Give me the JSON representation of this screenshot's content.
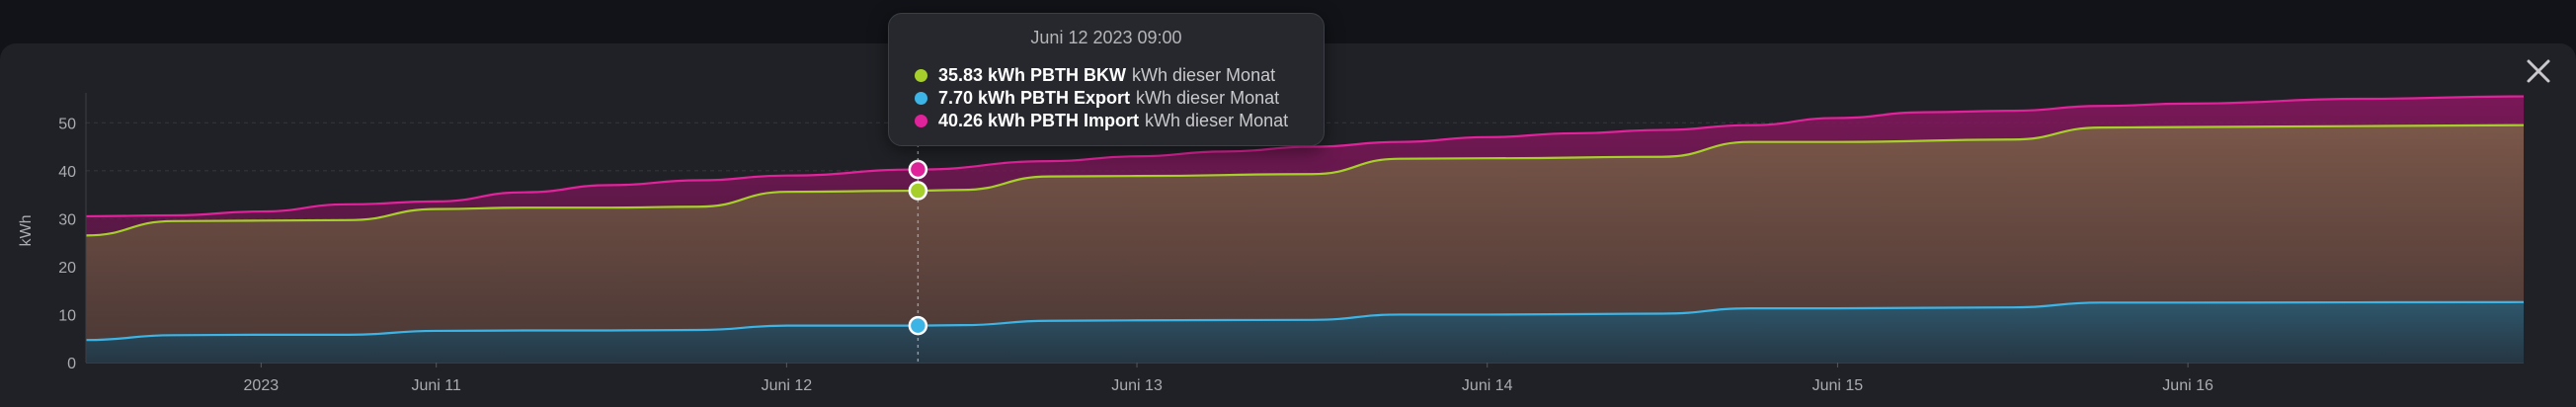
{
  "colors": {
    "page_bg": "#111318",
    "panel_bg": "#1f2126",
    "import": "#e0239a",
    "bkw": "#a7cf2c",
    "export": "#3db4e6"
  },
  "close_icon": "close-icon",
  "tooltip": {
    "title": "Juni 12 2023 09:00",
    "rows": [
      {
        "value": "35.83 kWh PBTH BKW",
        "unit": "kWh dieser Monat",
        "color": "#a7cf2c"
      },
      {
        "value": "7.70 kWh PBTH Export",
        "unit": "kWh dieser Monat",
        "color": "#3db4e6"
      },
      {
        "value": "40.26 kWh PBTH Import",
        "unit": "kWh dieser Monat",
        "color": "#e0239a"
      }
    ]
  },
  "chart_data": {
    "type": "area",
    "ylabel": "kWh",
    "ylim": [
      0,
      55
    ],
    "yticks": [
      0,
      10,
      20,
      30,
      40,
      50
    ],
    "x_range_hours": [
      "2023-06-10 00:00",
      "2023-06-16 23:00"
    ],
    "xtick_labels": [
      "2023",
      "Juni 11",
      "Juni 12",
      "Juni 13",
      "Juni 14",
      "Juni 15",
      "Juni 16"
    ],
    "xtick_dates": [
      "2023-06-10 12:00",
      "2023-06-11 00:00",
      "2023-06-12 00:00",
      "2023-06-13 00:00",
      "2023-06-14 00:00",
      "2023-06-15 00:00",
      "2023-06-16 00:00"
    ],
    "grid": true,
    "hover_x": "2023-06-12 09:00",
    "series": [
      {
        "name": "PBTH Import",
        "color": "#e0239a",
        "points": [
          [
            "2023-06-10 00:00",
            30.5
          ],
          [
            "2023-06-10 06:00",
            30.7
          ],
          [
            "2023-06-10 12:00",
            31.5
          ],
          [
            "2023-06-10 18:00",
            33.0
          ],
          [
            "2023-06-11 00:00",
            33.6
          ],
          [
            "2023-06-11 06:00",
            35.5
          ],
          [
            "2023-06-11 12:00",
            37.0
          ],
          [
            "2023-06-11 18:00",
            38.0
          ],
          [
            "2023-06-12 00:00",
            39.0
          ],
          [
            "2023-06-12 09:00",
            40.26
          ],
          [
            "2023-06-12 18:00",
            42.0
          ],
          [
            "2023-06-13 00:00",
            43.0
          ],
          [
            "2023-06-13 06:00",
            44.0
          ],
          [
            "2023-06-13 12:00",
            45.0
          ],
          [
            "2023-06-13 18:00",
            46.0
          ],
          [
            "2023-06-14 00:00",
            47.0
          ],
          [
            "2023-06-14 06:00",
            47.8
          ],
          [
            "2023-06-14 12:00",
            48.5
          ],
          [
            "2023-06-14 18:00",
            49.5
          ],
          [
            "2023-06-15 00:00",
            51.0
          ],
          [
            "2023-06-15 06:00",
            52.2
          ],
          [
            "2023-06-15 12:00",
            52.5
          ],
          [
            "2023-06-15 18:00",
            53.5
          ],
          [
            "2023-06-16 00:00",
            54.0
          ],
          [
            "2023-06-16 12:00",
            55.0
          ],
          [
            "2023-06-16 23:00",
            55.5
          ]
        ]
      },
      {
        "name": "PBTH BKW",
        "color": "#a7cf2c",
        "points": [
          [
            "2023-06-10 00:00",
            26.5
          ],
          [
            "2023-06-10 06:00",
            29.5
          ],
          [
            "2023-06-10 12:00",
            29.6
          ],
          [
            "2023-06-10 18:00",
            29.7
          ],
          [
            "2023-06-11 00:00",
            32.0
          ],
          [
            "2023-06-11 06:00",
            32.3
          ],
          [
            "2023-06-11 12:00",
            32.3
          ],
          [
            "2023-06-11 18:00",
            32.5
          ],
          [
            "2023-06-12 00:00",
            35.6
          ],
          [
            "2023-06-12 09:00",
            35.83
          ],
          [
            "2023-06-12 12:00",
            36.0
          ],
          [
            "2023-06-12 18:00",
            38.8
          ],
          [
            "2023-06-13 00:00",
            38.9
          ],
          [
            "2023-06-13 12:00",
            39.3
          ],
          [
            "2023-06-13 18:00",
            42.5
          ],
          [
            "2023-06-14 00:00",
            42.6
          ],
          [
            "2023-06-14 12:00",
            42.9
          ],
          [
            "2023-06-14 18:00",
            46.0
          ],
          [
            "2023-06-15 00:00",
            46.0
          ],
          [
            "2023-06-15 12:00",
            46.5
          ],
          [
            "2023-06-15 18:00",
            49.0
          ],
          [
            "2023-06-16 00:00",
            49.1
          ],
          [
            "2023-06-16 23:00",
            49.5
          ]
        ]
      },
      {
        "name": "PBTH Export",
        "color": "#3db4e6",
        "points": [
          [
            "2023-06-10 00:00",
            4.7
          ],
          [
            "2023-06-10 06:00",
            5.7
          ],
          [
            "2023-06-10 12:00",
            5.8
          ],
          [
            "2023-06-10 18:00",
            5.8
          ],
          [
            "2023-06-11 00:00",
            6.6
          ],
          [
            "2023-06-11 06:00",
            6.7
          ],
          [
            "2023-06-11 12:00",
            6.7
          ],
          [
            "2023-06-11 18:00",
            6.8
          ],
          [
            "2023-06-12 00:00",
            7.7
          ],
          [
            "2023-06-12 09:00",
            7.7
          ],
          [
            "2023-06-12 12:00",
            7.8
          ],
          [
            "2023-06-12 18:00",
            8.7
          ],
          [
            "2023-06-13 00:00",
            8.8
          ],
          [
            "2023-06-13 12:00",
            8.9
          ],
          [
            "2023-06-13 18:00",
            10.0
          ],
          [
            "2023-06-14 00:00",
            10.0
          ],
          [
            "2023-06-14 12:00",
            10.2
          ],
          [
            "2023-06-14 18:00",
            11.3
          ],
          [
            "2023-06-15 00:00",
            11.3
          ],
          [
            "2023-06-15 12:00",
            11.5
          ],
          [
            "2023-06-15 18:00",
            12.5
          ],
          [
            "2023-06-16 00:00",
            12.5
          ],
          [
            "2023-06-16 23:00",
            12.6
          ]
        ]
      }
    ]
  }
}
